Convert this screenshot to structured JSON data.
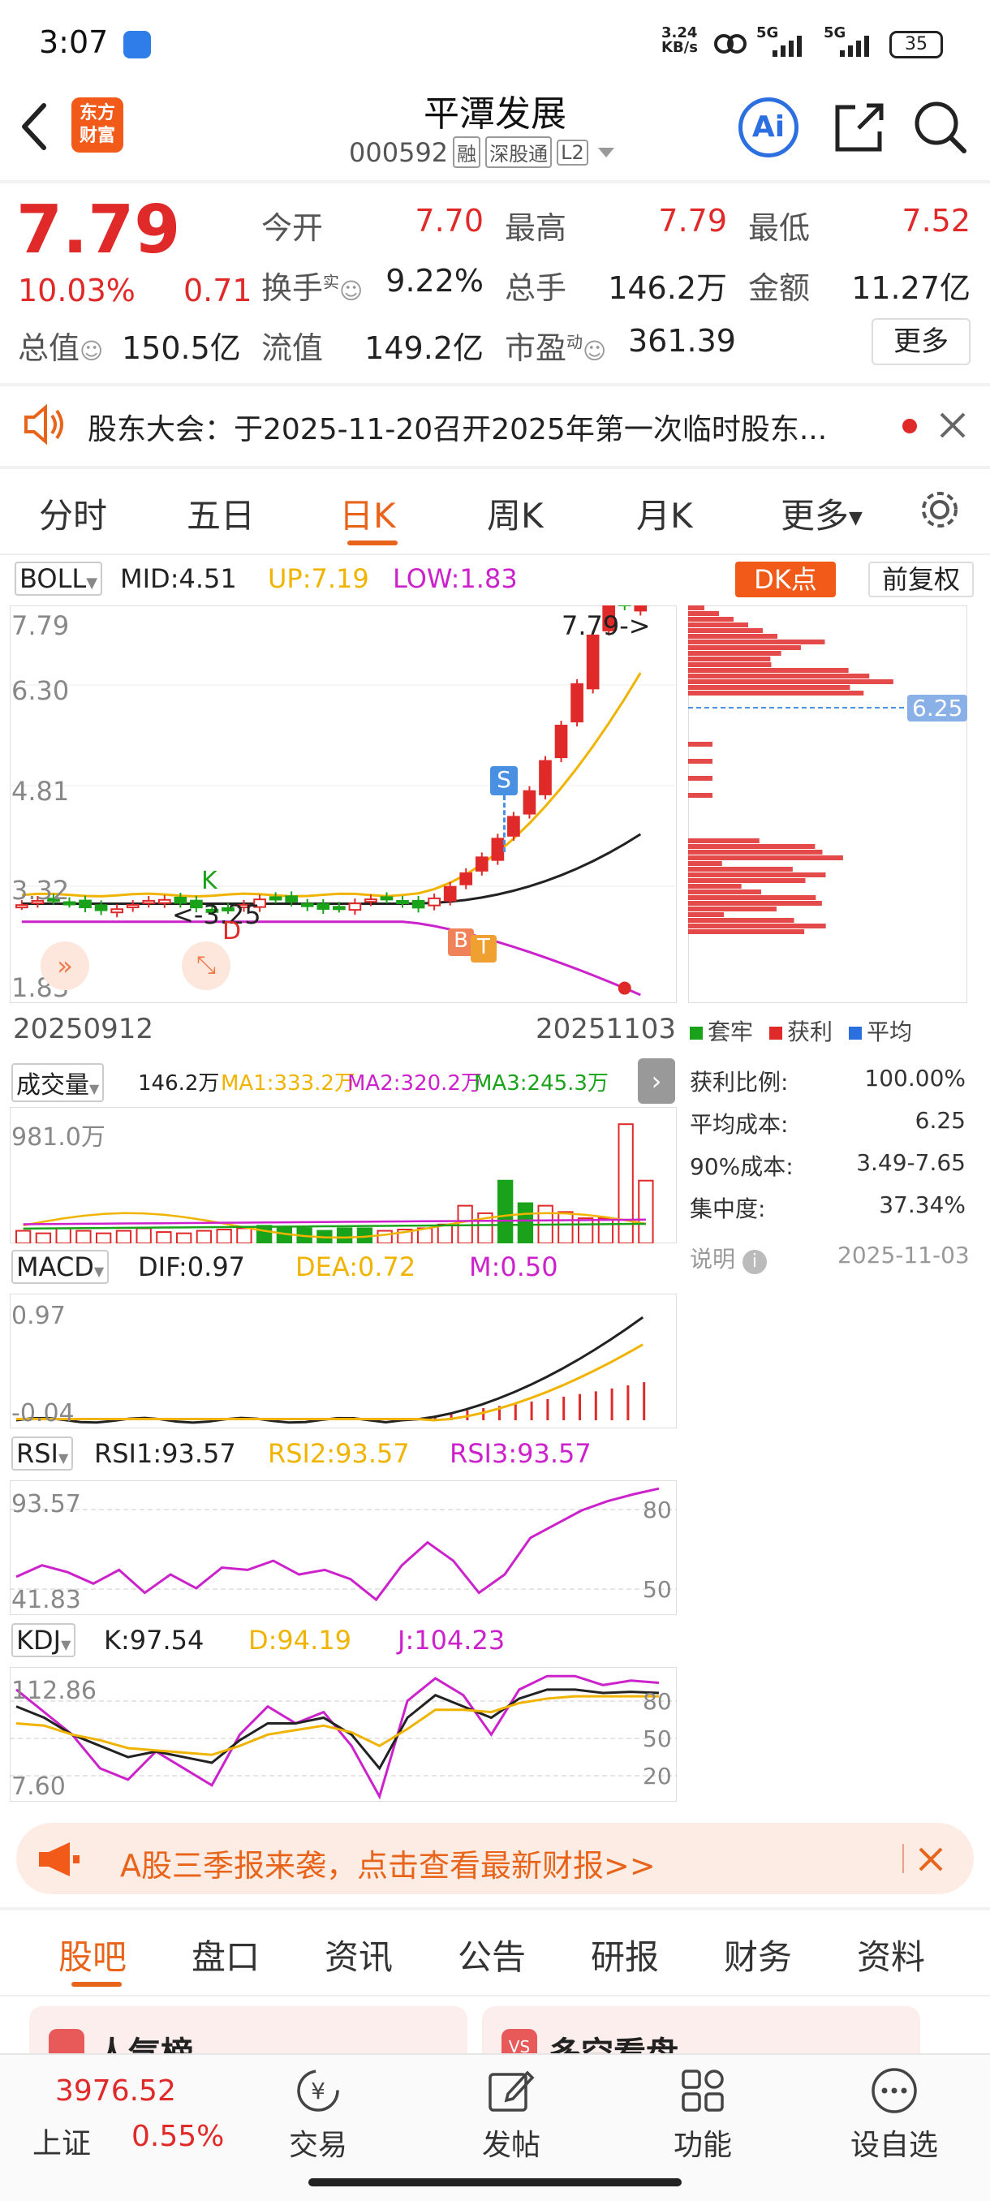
{
  "status": {
    "time": "3:07",
    "net_speed_top": "3.24",
    "net_speed_unit": "KB/s",
    "sig1": "5G",
    "sig2": "5G",
    "battery": "35"
  },
  "header": {
    "app_logo": "东方财富",
    "title": "平潭发展",
    "code": "000592",
    "tags": [
      "融",
      "深股通",
      "L2"
    ],
    "ai": "Ai"
  },
  "quote": {
    "price": "7.79",
    "pct": "10.03%",
    "chg": "0.71",
    "open_label": "今开",
    "open": "7.70",
    "high_label": "最高",
    "high": "7.79",
    "low_label": "最低",
    "low": "7.52",
    "turnover_label": "换手",
    "turnover_sup": "实",
    "turnover": "9.22%",
    "vol_label": "总手",
    "vol": "146.2万",
    "amt_label": "金额",
    "amt": "11.27亿",
    "mcap_label": "总值",
    "mcap": "150.5亿",
    "float_label": "流值",
    "float": "149.2亿",
    "pe_label": "市盈",
    "pe_sup": "动",
    "pe": "361.39",
    "more": "更多"
  },
  "notice": {
    "text": "股东大会：于2025-11-20召开2025年第一次临时股东..."
  },
  "tabs": {
    "items": [
      "分时",
      "五日",
      "日K",
      "周K",
      "月K",
      "更多"
    ],
    "active": "日K"
  },
  "boll": {
    "name": "BOLL",
    "mid": "MID:4.51",
    "up": "UP:7.19",
    "low": "LOW:1.83",
    "dk": "DK点",
    "fq": "前复权",
    "y_top": "7.79",
    "y2": "6.30",
    "y3": "4.81",
    "y4": "3.32",
    "y_bot": "1.83",
    "max_label": "7.79->",
    "min_label": "<-3.25",
    "date_start": "20250912",
    "date_end": "20251103",
    "k_mark": "K",
    "d_mark": "D",
    "s_mark": "S",
    "b_mark": "B",
    "t_mark": "T",
    "chip_price": "6.25"
  },
  "chip": {
    "legend": [
      "套牢",
      "获利",
      "平均"
    ],
    "rows": [
      {
        "k": "获利比例:",
        "v": "100.00%"
      },
      {
        "k": "平均成本:",
        "v": "6.25"
      },
      {
        "k": "90%成本:",
        "v": "3.49-7.65"
      },
      {
        "k": "集中度:",
        "v": "37.34%"
      }
    ],
    "note": "说明",
    "date": "2025-11-03"
  },
  "volume": {
    "name": "成交量",
    "v": "146.2万",
    "ma1": "MA1:333.2万",
    "ma2": "MA2:320.2万",
    "ma3": "MA3:245.3万",
    "y_top": "981.0万"
  },
  "macd": {
    "name": "MACD",
    "dif": "DIF:0.97",
    "dea": "DEA:0.72",
    "m": "M:0.50",
    "y_top": "0.97",
    "y_bot": "-0.04"
  },
  "rsi": {
    "name": "RSI",
    "r1": "RSI1:93.57",
    "r2": "RSI2:93.57",
    "r3": "RSI3:93.57",
    "y_top": "93.57",
    "y_bot": "41.83",
    "g80": "80",
    "g50": "50"
  },
  "kdj": {
    "name": "KDJ",
    "k": "K:97.54",
    "d": "D:94.19",
    "j": "J:104.23",
    "y_top": "112.86",
    "y_bot": "7.60",
    "g80": "80",
    "g50": "50",
    "g20": "20"
  },
  "banner": {
    "text": "A股三季报来袭，点击查看最新财报>>"
  },
  "subtabs": {
    "items": [
      "股吧",
      "盘口",
      "资讯",
      "公告",
      "研报",
      "财务",
      "资料"
    ],
    "active": "股吧"
  },
  "cards": {
    "c1": "人气榜",
    "c2": "多空看盘"
  },
  "bottom": {
    "index_val": "3976.52",
    "index_name": "上证",
    "index_pct": "0.55%",
    "items": [
      "交易",
      "发帖",
      "功能",
      "设自选"
    ]
  },
  "colors": {
    "up": "#e02a2a",
    "down": "#1aa31a",
    "ma_yellow": "#f0b400",
    "ma_black": "#222222",
    "ma_magenta": "#cc22cc",
    "accent": "#e8641a"
  }
}
